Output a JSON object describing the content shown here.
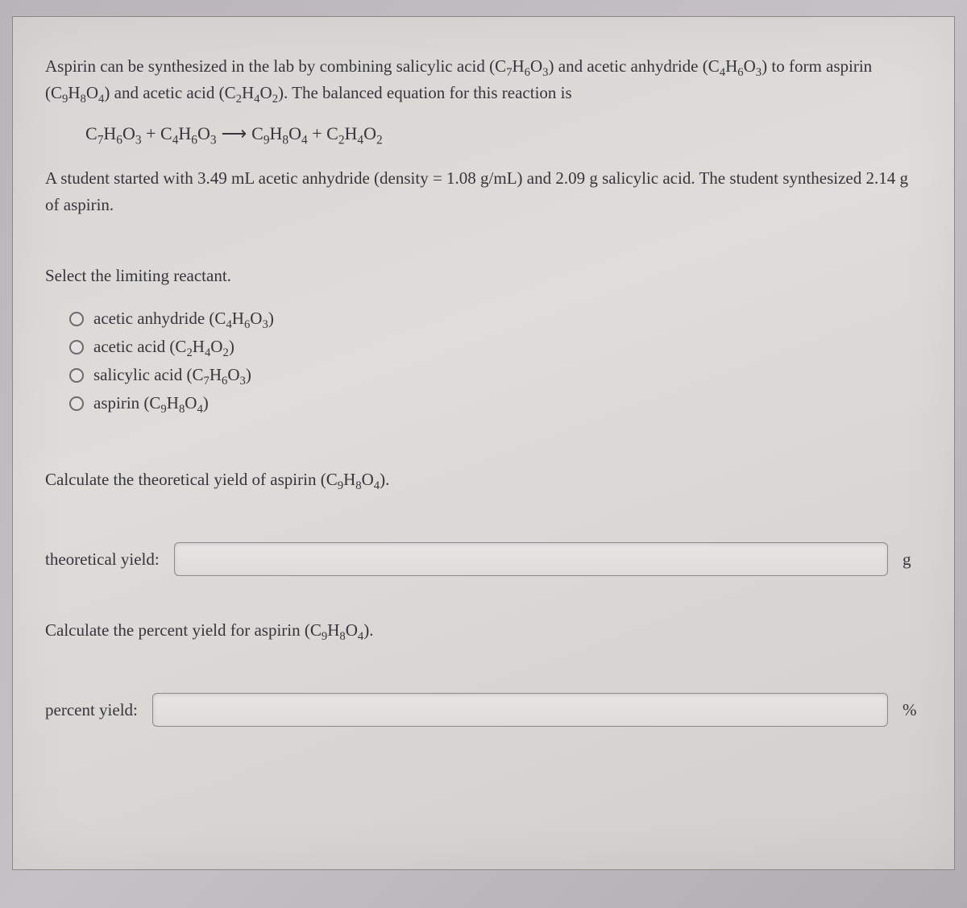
{
  "colors": {
    "page_bg": "#d8d5d4",
    "outer_bg": "#b8b5b8",
    "text": "#35353d",
    "input_border": "#8a8a90",
    "radio_border": "#6a6a72"
  },
  "typography": {
    "font_family": "Georgia, Times New Roman, serif",
    "body_fontsize_pt": 16,
    "line_height": 1.55
  },
  "intro": {
    "part1": "Aspirin can be synthesized in the lab by combining salicylic acid (",
    "salicylic_formula": {
      "c": "C",
      "c_n": "7",
      "h": "H",
      "h_n": "6",
      "o": "O",
      "o_n": "3"
    },
    "part2": ") and acetic anhydride (",
    "anhydride_formula": {
      "c": "C",
      "c_n": "4",
      "h": "H",
      "h_n": "6",
      "o": "O",
      "o_n": "3"
    },
    "part3": ") to form aspirin (",
    "aspirin_formula": {
      "c": "C",
      "c_n": "9",
      "h": "H",
      "h_n": "8",
      "o": "O",
      "o_n": "4"
    },
    "part4": ") and acetic acid (",
    "acetic_formula": {
      "c": "C",
      "c_n": "2",
      "h": "H",
      "h_n": "4",
      "o": "O",
      "o_n": "2"
    },
    "part5": "). The balanced equation for this reaction is"
  },
  "equation": {
    "r1": {
      "c": "C",
      "c_n": "7",
      "h": "H",
      "h_n": "6",
      "o": "O",
      "o_n": "3"
    },
    "plus1": " + ",
    "r2": {
      "c": "C",
      "c_n": "4",
      "h": "H",
      "h_n": "6",
      "o": "O",
      "o_n": "3"
    },
    "arrow": "⟶",
    "p1": {
      "c": "C",
      "c_n": "9",
      "h": "H",
      "h_n": "8",
      "o": "O",
      "o_n": "4"
    },
    "plus2": " + ",
    "p2": {
      "c": "C",
      "c_n": "2",
      "h": "H",
      "h_n": "4",
      "o": "O",
      "o_n": "2"
    }
  },
  "student": {
    "part1": "A student started with ",
    "vol": "3.49 mL",
    "part2": " acetic anhydride (density = ",
    "density": "1.08 g/mL",
    "part3": ") and ",
    "mass_sal": "2.09 g",
    "part4": " salicylic acid. The student synthesized ",
    "mass_asp": "2.14 g",
    "part5": " of aspirin."
  },
  "q1": {
    "prompt": "Select the limiting reactant.",
    "options": [
      {
        "pre": "acetic anhydride (",
        "f": {
          "c": "C",
          "c_n": "4",
          "h": "H",
          "h_n": "6",
          "o": "O",
          "o_n": "3"
        },
        "post": ")"
      },
      {
        "pre": "acetic acid (",
        "f": {
          "c": "C",
          "c_n": "2",
          "h": "H",
          "h_n": "4",
          "o": "O",
          "o_n": "2"
        },
        "post": ")"
      },
      {
        "pre": "salicylic acid (",
        "f": {
          "c": "C",
          "c_n": "7",
          "h": "H",
          "h_n": "6",
          "o": "O",
          "o_n": "3"
        },
        "post": ")"
      },
      {
        "pre": "aspirin (",
        "f": {
          "c": "C",
          "c_n": "9",
          "h": "H",
          "h_n": "8",
          "o": "O",
          "o_n": "4"
        },
        "post": ")"
      }
    ]
  },
  "q2": {
    "prompt_pre": "Calculate the theoretical yield of aspirin (",
    "prompt_formula": {
      "c": "C",
      "c_n": "9",
      "h": "H",
      "h_n": "8",
      "o": "O",
      "o_n": "4"
    },
    "prompt_post": ").",
    "label": "theoretical yield:",
    "unit": "g",
    "value": ""
  },
  "q3": {
    "prompt_pre": "Calculate the percent yield for aspirin (",
    "prompt_formula": {
      "c": "C",
      "c_n": "9",
      "h": "H",
      "h_n": "8",
      "o": "O",
      "o_n": "4"
    },
    "prompt_post": ").",
    "label": "percent yield:",
    "unit": "%",
    "value": ""
  }
}
